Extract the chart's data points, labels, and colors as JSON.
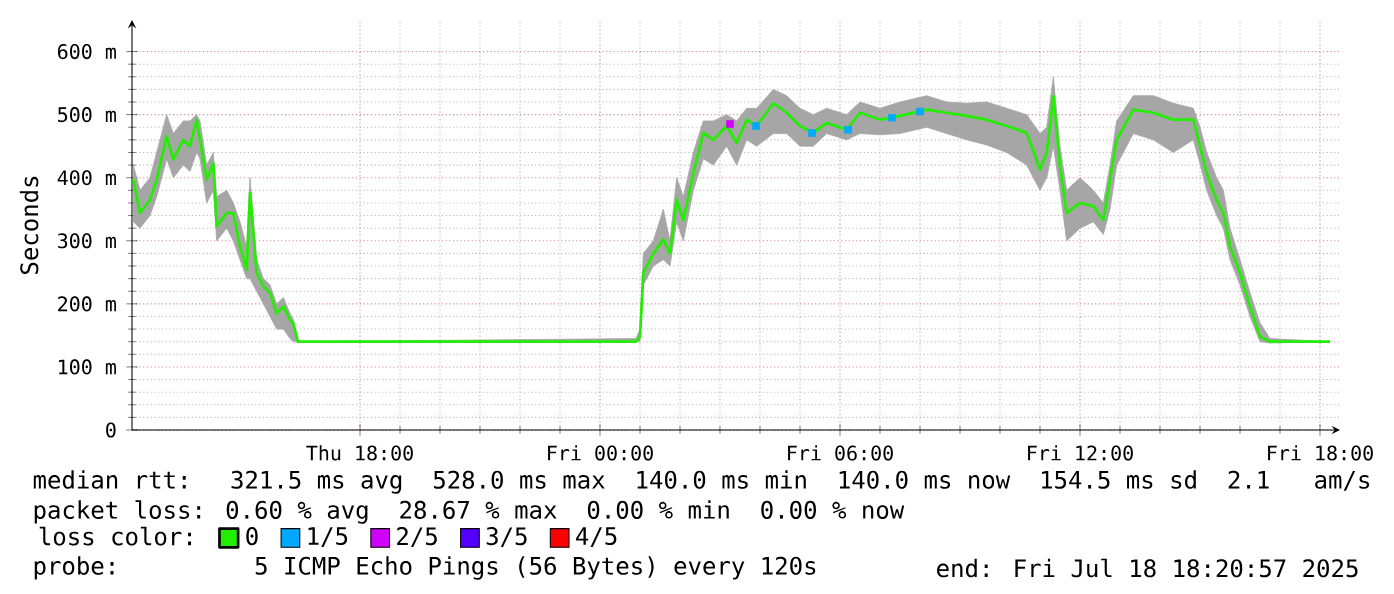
{
  "chart_data": {
    "type": "line",
    "ylabel": "Seconds",
    "legend_title": "loss color:",
    "legend": "bottom",
    "grid": true,
    "xlim": [
      "2025-07-17T12:18",
      "2025-07-18T18:30"
    ],
    "ylim": [
      0,
      650
    ],
    "xticks": [
      {
        "value": "2025-07-17T18:00",
        "label": "Thu 18:00"
      },
      {
        "value": "2025-07-18T00:00",
        "label": "Fri 00:00"
      },
      {
        "value": "2025-07-18T06:00",
        "label": "Fri 06:00"
      },
      {
        "value": "2025-07-18T12:00",
        "label": "Fri 12:00"
      },
      {
        "value": "2025-07-18T18:00",
        "label": "Fri 18:00"
      }
    ],
    "yticks": [
      0,
      {
        "value": 100,
        "label": "100 m"
      },
      {
        "value": 200,
        "label": "200 m"
      },
      {
        "value": 300,
        "label": "300 m"
      },
      {
        "value": 400,
        "label": "400 m"
      },
      {
        "value": 500,
        "label": "500 m"
      },
      {
        "value": 600,
        "label": "600 m"
      }
    ],
    "series": [
      {
        "name": "0",
        "color": "#22ee00",
        "marker": "none",
        "x": [
          "2025-07-17T12:20",
          "2025-07-17T12:30",
          "2025-07-17T12:45",
          "2025-07-17T12:55",
          "2025-07-17T13:10",
          "2025-07-17T13:20",
          "2025-07-17T13:35",
          "2025-07-17T13:45",
          "2025-07-17T13:55",
          "2025-07-17T14:00",
          "2025-07-17T14:10",
          "2025-07-17T14:20",
          "2025-07-17T14:25",
          "2025-07-17T14:40",
          "2025-07-17T14:50",
          "2025-07-17T15:00",
          "2025-07-17T15:10",
          "2025-07-17T15:15",
          "2025-07-17T15:25",
          "2025-07-17T15:35",
          "2025-07-17T15:45",
          "2025-07-17T15:55",
          "2025-07-17T16:05",
          "2025-07-17T16:15",
          "2025-07-17T16:20",
          "2025-07-17T16:27",
          "2025-07-18T00:54",
          "2025-07-18T01:00",
          "2025-07-18T01:05",
          "2025-07-18T01:20",
          "2025-07-18T01:35",
          "2025-07-18T01:45",
          "2025-07-18T01:55",
          "2025-07-18T02:05",
          "2025-07-18T02:20",
          "2025-07-18T02:35",
          "2025-07-18T02:50",
          "2025-07-18T03:10",
          "2025-07-18T03:25",
          "2025-07-18T03:40",
          "2025-07-18T03:55",
          "2025-07-18T04:20",
          "2025-07-18T04:40",
          "2025-07-18T05:00",
          "2025-07-18T05:20",
          "2025-07-18T05:40",
          "2025-07-18T06:10",
          "2025-07-18T06:30",
          "2025-07-18T07:00",
          "2025-07-18T07:30",
          "2025-07-18T08:10",
          "2025-07-18T08:40",
          "2025-07-18T09:10",
          "2025-07-18T09:40",
          "2025-07-18T10:10",
          "2025-07-18T10:40",
          "2025-07-18T11:00",
          "2025-07-18T11:10",
          "2025-07-18T11:20",
          "2025-07-18T11:30",
          "2025-07-18T11:40",
          "2025-07-18T12:00",
          "2025-07-18T12:20",
          "2025-07-18T12:35",
          "2025-07-18T12:45",
          "2025-07-18T12:55",
          "2025-07-18T13:20",
          "2025-07-18T13:50",
          "2025-07-18T14:20",
          "2025-07-18T14:50",
          "2025-07-18T15:00",
          "2025-07-18T15:10",
          "2025-07-18T15:25",
          "2025-07-18T15:35",
          "2025-07-18T15:45",
          "2025-07-18T16:00",
          "2025-07-18T16:15",
          "2025-07-18T16:30",
          "2025-07-18T16:45",
          "2025-07-18T18:15"
        ],
        "values": [
          397,
          344,
          365,
          397,
          466,
          429,
          460,
          450,
          492,
          460,
          397,
          423,
          323,
          344,
          344,
          291,
          254,
          376,
          249,
          228,
          217,
          185,
          196,
          175,
          169,
          140,
          140,
          148,
          249,
          280,
          302,
          280,
          365,
          333,
          407,
          471,
          460,
          482,
          455,
          492,
          482,
          518,
          503,
          482,
          471,
          487,
          476,
          503,
          492,
          498,
          508,
          503,
          498,
          492,
          482,
          471,
          413,
          439,
          529,
          418,
          344,
          360,
          355,
          333,
          397,
          460,
          508,
          503,
          492,
          492,
          450,
          407,
          365,
          344,
          291,
          249,
          196,
          148,
          140,
          140
        ],
        "lower": [
          330,
          320,
          340,
          370,
          430,
          400,
          420,
          410,
          440,
          430,
          360,
          380,
          300,
          320,
          300,
          270,
          240,
          240,
          220,
          200,
          180,
          160,
          160,
          145,
          140,
          140,
          140,
          140,
          230,
          260,
          270,
          260,
          330,
          300,
          380,
          430,
          420,
          450,
          420,
          460,
          450,
          470,
          470,
          450,
          450,
          470,
          460,
          470,
          468,
          470,
          480,
          470,
          460,
          452,
          440,
          420,
          380,
          400,
          450,
          380,
          300,
          320,
          330,
          310,
          350,
          420,
          470,
          460,
          440,
          460,
          422,
          380,
          340,
          320,
          270,
          230,
          180,
          140,
          138,
          140
        ],
        "upper": [
          420,
          380,
          400,
          440,
          500,
          470,
          490,
          490,
          500,
          490,
          420,
          440,
          370,
          380,
          360,
          330,
          290,
          400,
          270,
          240,
          230,
          200,
          210,
          185,
          175,
          140,
          145,
          160,
          280,
          300,
          350,
          300,
          400,
          370,
          440,
          490,
          490,
          500,
          490,
          510,
          510,
          540,
          530,
          510,
          500,
          510,
          500,
          520,
          510,
          520,
          530,
          520,
          518,
          520,
          510,
          500,
          470,
          480,
          560,
          450,
          380,
          400,
          380,
          360,
          420,
          490,
          530,
          530,
          518,
          510,
          480,
          440,
          400,
          380,
          320,
          270,
          218,
          170,
          145,
          140
        ]
      },
      {
        "name": "1/5",
        "color": "#00a8ff",
        "type": "scatter",
        "marker": "square",
        "x": [
          "2025-07-18T03:54",
          "2025-07-18T05:18",
          "2025-07-18T06:12",
          "2025-07-18T07:18",
          "2025-07-18T08:00"
        ],
        "values": [
          482,
          471,
          476,
          495,
          505
        ]
      },
      {
        "name": "2/5",
        "color": "#d000ff",
        "type": "scatter",
        "marker": "square",
        "x": [
          "2025-07-18T03:15"
        ],
        "values": [
          485
        ]
      },
      {
        "name": "3/5",
        "color": "#5500ff",
        "type": "scatter",
        "marker": "square"
      },
      {
        "name": "4/5",
        "color": "#ff0000",
        "type": "scatter",
        "marker": "square"
      }
    ],
    "annotations": [
      "median rtt:  321.5 ms avg  528.0 ms max  140.0 ms min  140.0 ms now  154.5 ms sd  2.1   am/s",
      "packet loss: 0.60 % avg  28.67 % max  0.00 % min  0.00 % now",
      "probe:       5 ICMP Echo Pings (56 Bytes) every 120s",
      "end: Fri Jul 18 18:20:57 2025"
    ]
  }
}
